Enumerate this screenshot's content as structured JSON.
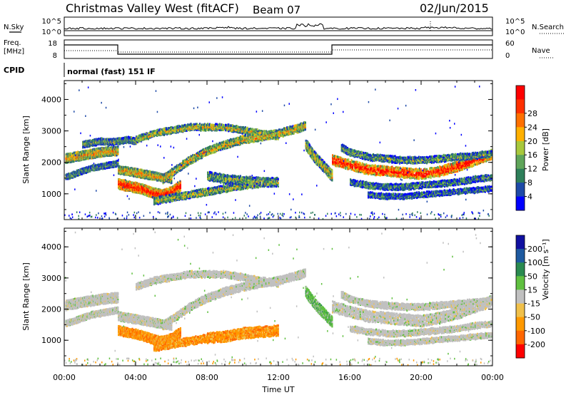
{
  "header": {
    "station": "Christmas Valley West (fitACF)",
    "beam": "Beam 07",
    "date": "02/Jun/2015"
  },
  "status_panel": {
    "nsky_label": "N.Sky",
    "nsky_ticks": [
      "10^5",
      "10^0"
    ],
    "nsearch_label": "N.Search",
    "nsearch_ticks": [
      "10^5",
      "10^0"
    ],
    "freq_label_1": "Freq.",
    "freq_label_2": "[MHz]",
    "freq_ticks": [
      "18",
      "8"
    ],
    "nave_label": "Nave",
    "nave_ticks": [
      "60",
      "0"
    ],
    "cpid_label": "CPID",
    "cpid_value": "normal (fast) 151 IF"
  },
  "colors": {
    "power": [
      "#0000ff",
      "#1e4aa8",
      "#2e7f5a",
      "#5fa55a",
      "#a8c83c",
      "#ffb000",
      "#ff7000",
      "#ff3000",
      "#ff0000"
    ],
    "velocity": [
      "#ff0000",
      "#ff6600",
      "#ff9900",
      "#f0c04a",
      "#c0c0c0",
      "#60c040",
      "#2a8a50",
      "#1e5aa0",
      "#1010a0"
    ]
  },
  "chart_data": [
    {
      "type": "heatmap",
      "name": "power",
      "xlabel": "",
      "ylabel": "Slant Range [km]",
      "xlim": [
        0,
        24
      ],
      "ylim": [
        180,
        4600
      ],
      "yticks": [
        "1000",
        "2000",
        "3000",
        "4000"
      ],
      "colorbar_label": "Power [dB]",
      "colorbar_ticks": [
        "4",
        "8",
        "12",
        "16",
        "20",
        "24",
        "28"
      ],
      "bands": [
        {
          "x": [
            0.0,
            0.5,
            1.0,
            1.5,
            2.0,
            2.5,
            3.0
          ],
          "y": [
            2150,
            2200,
            2250,
            2300,
            2350,
            2380,
            2400
          ],
          "width": 250,
          "level": 0.6
        },
        {
          "x": [
            0.0,
            0.5,
            1.0,
            1.5,
            2.0,
            2.5,
            3.0
          ],
          "y": [
            1550,
            1650,
            1750,
            1850,
            1900,
            1950,
            2000
          ],
          "width": 140,
          "level": 0.3
        },
        {
          "x": [
            1.0,
            1.5,
            2.0,
            2.5,
            3.0,
            3.5,
            4.0
          ],
          "y": [
            2600,
            2650,
            2700,
            2680,
            2700,
            2750,
            2700
          ],
          "width": 160,
          "level": 0.35
        },
        {
          "x": [
            3.0,
            3.5,
            4.0,
            4.5,
            5.0,
            5.5,
            6.0,
            6.5
          ],
          "y": [
            1350,
            1280,
            1230,
            1150,
            1050,
            1000,
            1100,
            1300
          ],
          "width": 280,
          "level": 0.9
        },
        {
          "x": [
            3.0,
            3.5,
            4.0,
            4.5,
            5.0,
            5.5,
            6.0
          ],
          "y": [
            1800,
            1750,
            1700,
            1650,
            1600,
            1550,
            1500
          ],
          "width": 220,
          "level": 0.6
        },
        {
          "x": [
            4.0,
            5.0,
            6.0,
            7.0,
            8.0,
            9.0,
            10.0,
            11.0,
            12.0
          ],
          "y": [
            2750,
            2950,
            3050,
            3150,
            3150,
            3150,
            3050,
            2950,
            2850
          ],
          "width": 180,
          "level": 0.5
        },
        {
          "x": [
            5.5,
            6.0,
            7.0,
            8.0,
            9.0,
            10.0,
            11.0,
            12.0,
            13.0,
            13.5
          ],
          "y": [
            1500,
            1700,
            2100,
            2400,
            2600,
            2750,
            2850,
            2950,
            3100,
            3200
          ],
          "width": 220,
          "level": 0.55
        },
        {
          "x": [
            5.0,
            6.0,
            7.0,
            8.0,
            9.0,
            10.0,
            11.0
          ],
          "y": [
            800,
            900,
            1000,
            1100,
            1200,
            1300,
            1350
          ],
          "width": 200,
          "level": 0.45
        },
        {
          "x": [
            8.0,
            9.0,
            10.0,
            11.0,
            12.0
          ],
          "y": [
            1600,
            1500,
            1450,
            1400,
            1400
          ],
          "width": 250,
          "level": 0.4
        },
        {
          "x": [
            13.5,
            14.0,
            14.5,
            15.0
          ],
          "y": [
            2600,
            2200,
            1900,
            1600
          ],
          "width": 300,
          "level": 0.5
        },
        {
          "x": [
            15.0,
            16.0,
            17.0,
            18.0,
            19.0,
            20.0,
            21.0,
            22.0,
            23.0,
            24.0
          ],
          "y": [
            2100,
            1950,
            1800,
            1750,
            1700,
            1650,
            1750,
            1900,
            2100,
            2300
          ],
          "width": 280,
          "level": 0.9
        },
        {
          "x": [
            15.5,
            16.0,
            17.0,
            18.0,
            19.0,
            20.0,
            21.0,
            22.0,
            23.0,
            24.0
          ],
          "y": [
            2500,
            2350,
            2200,
            2150,
            2100,
            2100,
            2150,
            2200,
            2250,
            2300
          ],
          "width": 180,
          "level": 0.35
        },
        {
          "x": [
            16.0,
            17.0,
            18.0,
            19.0,
            20.0,
            21.0,
            22.0,
            23.0,
            24.0
          ],
          "y": [
            1400,
            1300,
            1250,
            1250,
            1300,
            1350,
            1400,
            1500,
            1550
          ],
          "width": 160,
          "level": 0.3
        },
        {
          "x": [
            17.0,
            18.0,
            19.0,
            20.0,
            21.0,
            22.0,
            23.0,
            24.0
          ],
          "y": [
            1000,
            950,
            950,
            1000,
            1050,
            1100,
            1150,
            1200
          ],
          "width": 140,
          "level": 0.25
        }
      ]
    },
    {
      "type": "heatmap",
      "name": "velocity",
      "xlabel": "Time UT",
      "ylabel": "Slant Range [km]",
      "xlim": [
        0,
        24
      ],
      "ylim": [
        180,
        4600
      ],
      "xticks": [
        "00:00",
        "04:00",
        "08:00",
        "12:00",
        "16:00",
        "20:00",
        "00:00"
      ],
      "yticks": [
        "1000",
        "2000",
        "3000",
        "4000"
      ],
      "colorbar_label": "Velocity [m s⁻¹]",
      "colorbar_ticks": [
        "200",
        "100",
        "50",
        "15",
        "-15",
        "-50",
        "-100",
        "-200"
      ],
      "bands": [
        {
          "x": [
            0.0,
            0.5,
            1.0,
            1.5,
            2.0,
            2.5,
            3.0
          ],
          "y": [
            2150,
            2200,
            2250,
            2300,
            2350,
            2380,
            2400
          ],
          "width": 280,
          "level": 0.5
        },
        {
          "x": [
            0.0,
            0.5,
            1.0,
            1.5,
            2.0,
            2.5,
            3.0
          ],
          "y": [
            1550,
            1650,
            1750,
            1850,
            1900,
            1950,
            2000
          ],
          "width": 160,
          "level": 0.5
        },
        {
          "x": [
            3.0,
            3.5,
            4.0,
            4.5,
            5.0,
            5.5,
            6.0,
            6.5
          ],
          "y": [
            1350,
            1280,
            1230,
            1150,
            1050,
            1000,
            1100,
            1300
          ],
          "width": 260,
          "level": 0.3
        },
        {
          "x": [
            3.0,
            3.5,
            4.0,
            4.5,
            5.0,
            5.5,
            6.0
          ],
          "y": [
            1800,
            1750,
            1700,
            1650,
            1600,
            1550,
            1500
          ],
          "width": 240,
          "level": 0.5
        },
        {
          "x": [
            4.0,
            5.0,
            6.0,
            7.0,
            8.0,
            9.0,
            10.0,
            11.0,
            12.0
          ],
          "y": [
            2750,
            2950,
            3050,
            3150,
            3150,
            3150,
            3050,
            2950,
            2850
          ],
          "width": 180,
          "level": 0.5
        },
        {
          "x": [
            5.5,
            6.0,
            7.0,
            8.0,
            9.0,
            10.0,
            11.0,
            12.0,
            13.0,
            13.5
          ],
          "y": [
            1500,
            1700,
            2100,
            2400,
            2600,
            2750,
            2850,
            2950,
            3100,
            3200
          ],
          "width": 220,
          "level": 0.5
        },
        {
          "x": [
            5.0,
            6.0,
            7.0,
            8.0,
            9.0,
            10.0,
            11.0
          ],
          "y": [
            800,
            900,
            1000,
            1100,
            1200,
            1300,
            1350
          ],
          "width": 220,
          "level": 0.25
        },
        {
          "x": [
            8.0,
            9.0,
            10.0,
            11.0,
            12.0
          ],
          "y": [
            1100,
            1150,
            1250,
            1300,
            1350
          ],
          "width": 300,
          "level": 0.2
        },
        {
          "x": [
            13.5,
            14.0,
            14.5,
            15.0
          ],
          "y": [
            2600,
            2200,
            1900,
            1600
          ],
          "width": 300,
          "level": 0.6
        },
        {
          "x": [
            15.0,
            16.0,
            17.0,
            18.0,
            19.0,
            20.0,
            21.0,
            22.0,
            23.0,
            24.0
          ],
          "y": [
            2100,
            1950,
            1800,
            1750,
            1700,
            1650,
            1750,
            1900,
            2100,
            2300
          ],
          "width": 320,
          "level": 0.5
        },
        {
          "x": [
            15.5,
            16.0,
            17.0,
            18.0,
            19.0,
            20.0,
            21.0,
            22.0,
            23.0,
            24.0
          ],
          "y": [
            2500,
            2350,
            2200,
            2150,
            2100,
            2100,
            2150,
            2200,
            2250,
            2300
          ],
          "width": 180,
          "level": 0.5
        },
        {
          "x": [
            16.0,
            17.0,
            18.0,
            19.0,
            20.0,
            21.0,
            22.0,
            23.0,
            24.0
          ],
          "y": [
            1400,
            1300,
            1250,
            1250,
            1300,
            1350,
            1400,
            1500,
            1550
          ],
          "width": 160,
          "level": 0.5
        },
        {
          "x": [
            17.0,
            18.0,
            19.0,
            20.0,
            21.0,
            22.0,
            23.0,
            24.0
          ],
          "y": [
            1000,
            950,
            950,
            1000,
            1050,
            1100,
            1150,
            1200
          ],
          "width": 140,
          "level": 0.5
        }
      ]
    }
  ]
}
